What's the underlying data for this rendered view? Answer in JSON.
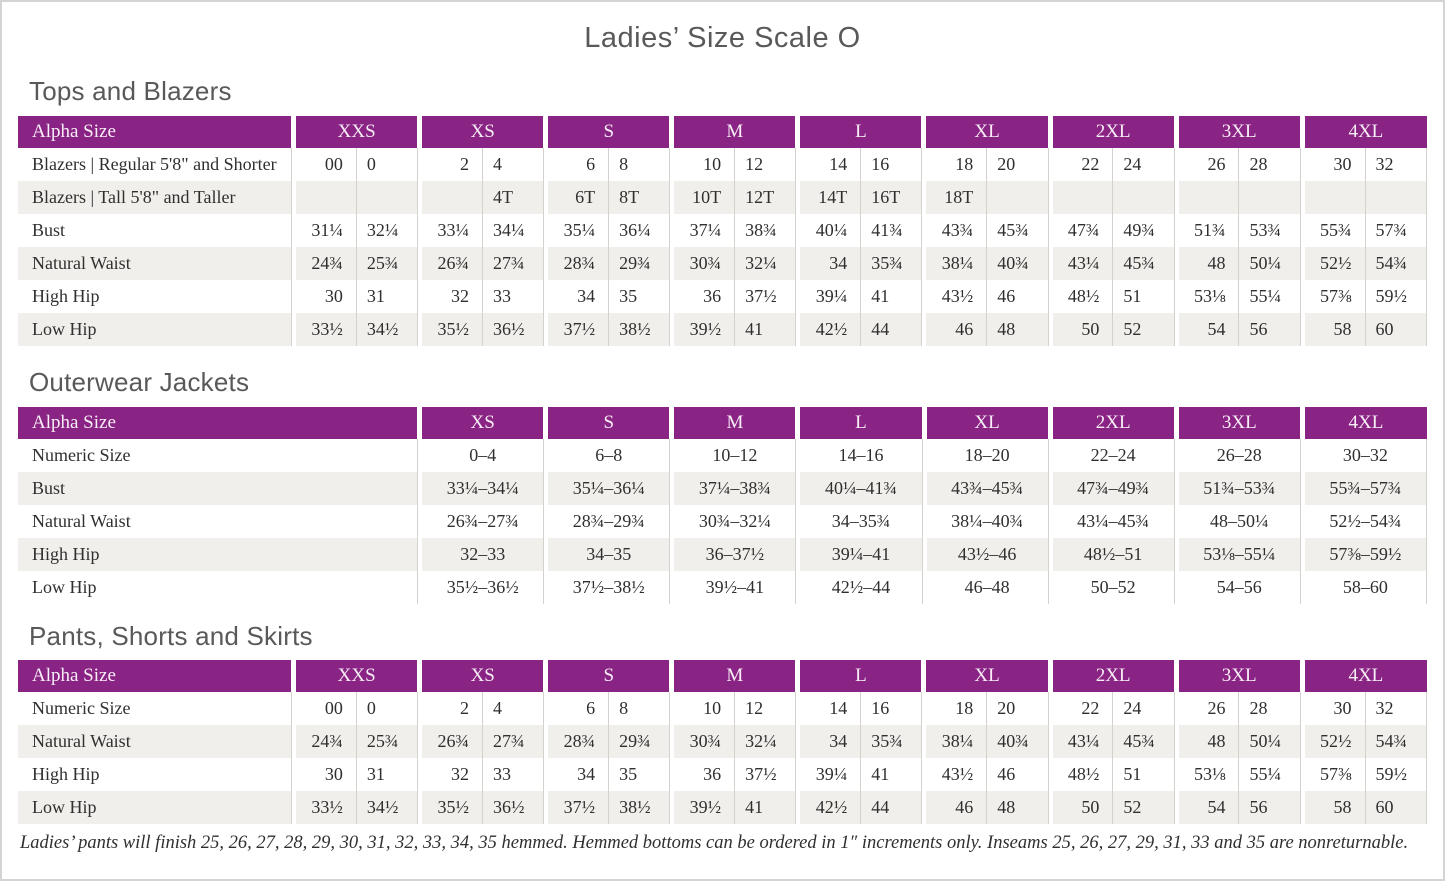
{
  "page": {
    "title": "Ladies’ Size Scale O"
  },
  "theme": {
    "header_bg": "#8a2484",
    "header_text": "#f7eef6",
    "row_alt_bg": "#f1efec",
    "body_text": "#302f2e",
    "heading_text": "#595959",
    "page_border": "#d4d4d4"
  },
  "footnote": "Ladies’ pants will finish 25, 26, 27, 28, 29, 30, 31, 32, 33, 34, 35 hemmed. Hemmed bottoms can be ordered in 1″ increments only. Inseams 25, 26, 27, 29, 31, 33 and 35 are nonreturnable.",
  "tables": [
    {
      "id": "tops-and-blazers",
      "heading": "Tops and Blazers",
      "label_header": "Alpha Size",
      "split": true,
      "columns": [
        "XXS",
        "XS",
        "S",
        "M",
        "L",
        "XL",
        "2XL",
        "3XL",
        "4XL"
      ],
      "rows": [
        {
          "label": "Blazers  |  Regular 5'8\" and Shorter",
          "values": [
            [
              "00",
              "0"
            ],
            [
              "2",
              "4"
            ],
            [
              "6",
              "8"
            ],
            [
              "10",
              "12"
            ],
            [
              "14",
              "16"
            ],
            [
              "18",
              "20"
            ],
            [
              "22",
              "24"
            ],
            [
              "26",
              "28"
            ],
            [
              "30",
              "32"
            ]
          ]
        },
        {
          "label": "Blazers  |  Tall 5'8\" and Taller",
          "values": [
            [
              "",
              ""
            ],
            [
              "",
              "4T"
            ],
            [
              "6T",
              "8T"
            ],
            [
              "10T",
              "12T"
            ],
            [
              "14T",
              "16T"
            ],
            [
              "18T",
              ""
            ],
            [
              "",
              ""
            ],
            [
              "",
              ""
            ],
            [
              "",
              ""
            ]
          ]
        },
        {
          "label": "Bust",
          "values": [
            [
              "31¼",
              "32¼"
            ],
            [
              "33¼",
              "34¼"
            ],
            [
              "35¼",
              "36¼"
            ],
            [
              "37¼",
              "38¾"
            ],
            [
              "40¼",
              "41¾"
            ],
            [
              "43¾",
              "45¾"
            ],
            [
              "47¾",
              "49¾"
            ],
            [
              "51¾",
              "53¾"
            ],
            [
              "55¾",
              "57¾"
            ]
          ]
        },
        {
          "label": "Natural Waist",
          "values": [
            [
              "24¾",
              "25¾"
            ],
            [
              "26¾",
              "27¾"
            ],
            [
              "28¾",
              "29¾"
            ],
            [
              "30¾",
              "32¼"
            ],
            [
              "34",
              "35¾"
            ],
            [
              "38¼",
              "40¾"
            ],
            [
              "43¼",
              "45¾"
            ],
            [
              "48",
              "50¼"
            ],
            [
              "52½",
              "54¾"
            ]
          ]
        },
        {
          "label": "High Hip",
          "values": [
            [
              "30",
              "31"
            ],
            [
              "32",
              "33"
            ],
            [
              "34",
              "35"
            ],
            [
              "36",
              "37½"
            ],
            [
              "39¼",
              "41"
            ],
            [
              "43½",
              "46"
            ],
            [
              "48½",
              "51"
            ],
            [
              "53⅛",
              "55¼"
            ],
            [
              "57⅜",
              "59½"
            ]
          ]
        },
        {
          "label": "Low Hip",
          "values": [
            [
              "33½",
              "34½"
            ],
            [
              "35½",
              "36½"
            ],
            [
              "37½",
              "38½"
            ],
            [
              "39½",
              "41"
            ],
            [
              "42½",
              "44"
            ],
            [
              "46",
              "48"
            ],
            [
              "50",
              "52"
            ],
            [
              "54",
              "56"
            ],
            [
              "58",
              "60"
            ]
          ]
        }
      ]
    },
    {
      "id": "outerwear-jackets",
      "heading": "Outerwear Jackets",
      "label_header": "Alpha Size",
      "split": false,
      "columns": [
        "XS",
        "S",
        "M",
        "L",
        "XL",
        "2XL",
        "3XL",
        "4XL"
      ],
      "rows": [
        {
          "label": "Numeric Size",
          "values": [
            "0–4",
            "6–8",
            "10–12",
            "14–16",
            "18–20",
            "22–24",
            "26–28",
            "30–32"
          ]
        },
        {
          "label": "Bust",
          "values": [
            "33¼–34¼",
            "35¼–36¼",
            "37¼–38¾",
            "40¼–41¾",
            "43¾–45¾",
            "47¾–49¾",
            "51¾–53¾",
            "55¾–57¾"
          ]
        },
        {
          "label": "Natural Waist",
          "values": [
            "26¾–27¾",
            "28¾–29¾",
            "30¾–32¼",
            "34–35¾",
            "38¼–40¾",
            "43¼–45¾",
            "48–50¼",
            "52½–54¾"
          ]
        },
        {
          "label": "High Hip",
          "values": [
            "32–33",
            "34–35",
            "36–37½",
            "39¼–41",
            "43½–46",
            "48½–51",
            "53⅛–55¼",
            "57⅜–59½"
          ]
        },
        {
          "label": "Low Hip",
          "values": [
            "35½–36½",
            "37½–38½",
            "39½–41",
            "42½–44",
            "46–48",
            "50–52",
            "54–56",
            "58–60"
          ]
        }
      ]
    },
    {
      "id": "pants-shorts-and-skirts",
      "heading": "Pants, Shorts and Skirts",
      "label_header": "Alpha Size",
      "split": true,
      "columns": [
        "XXS",
        "XS",
        "S",
        "M",
        "L",
        "XL",
        "2XL",
        "3XL",
        "4XL"
      ],
      "rows": [
        {
          "label": "Numeric Size",
          "values": [
            [
              "00",
              "0"
            ],
            [
              "2",
              "4"
            ],
            [
              "6",
              "8"
            ],
            [
              "10",
              "12"
            ],
            [
              "14",
              "16"
            ],
            [
              "18",
              "20"
            ],
            [
              "22",
              "24"
            ],
            [
              "26",
              "28"
            ],
            [
              "30",
              "32"
            ]
          ]
        },
        {
          "label": "Natural Waist",
          "values": [
            [
              "24¾",
              "25¾"
            ],
            [
              "26¾",
              "27¾"
            ],
            [
              "28¾",
              "29¾"
            ],
            [
              "30¾",
              "32¼"
            ],
            [
              "34",
              "35¾"
            ],
            [
              "38¼",
              "40¾"
            ],
            [
              "43¼",
              "45¾"
            ],
            [
              "48",
              "50¼"
            ],
            [
              "52½",
              "54¾"
            ]
          ]
        },
        {
          "label": "High Hip",
          "values": [
            [
              "30",
              "31"
            ],
            [
              "32",
              "33"
            ],
            [
              "34",
              "35"
            ],
            [
              "36",
              "37½"
            ],
            [
              "39¼",
              "41"
            ],
            [
              "43½",
              "46"
            ],
            [
              "48½",
              "51"
            ],
            [
              "53⅛",
              "55¼"
            ],
            [
              "57⅜",
              "59½"
            ]
          ]
        },
        {
          "label": "Low Hip",
          "values": [
            [
              "33½",
              "34½"
            ],
            [
              "35½",
              "36½"
            ],
            [
              "37½",
              "38½"
            ],
            [
              "39½",
              "41"
            ],
            [
              "42½",
              "44"
            ],
            [
              "46",
              "48"
            ],
            [
              "50",
              "52"
            ],
            [
              "54",
              "56"
            ],
            [
              "58",
              "60"
            ]
          ]
        }
      ]
    }
  ]
}
